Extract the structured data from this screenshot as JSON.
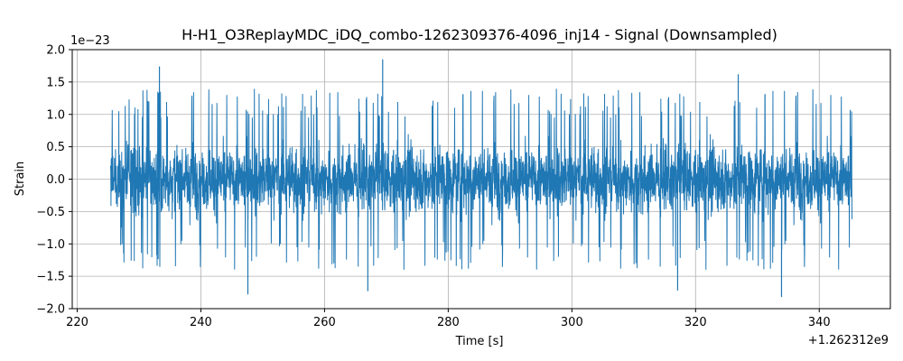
{
  "chart_data": {
    "type": "line",
    "title": "H-H1_O3ReplayMDC_iDQ_combo-1262309376-4096_inj14 - Signal (Downsampled)",
    "xlabel": "Time [s]",
    "ylabel": "Strain",
    "x_offset_label": "+1.262312e9",
    "y_scale_label": "1e−23",
    "x_range": [
      225.4,
      345.3
    ],
    "xlim": [
      219.2,
      351.5
    ],
    "ylim": [
      -2.0,
      2.0
    ],
    "x_ticks": [
      220,
      240,
      260,
      280,
      300,
      320,
      340
    ],
    "x_tick_labels": [
      "220",
      "240",
      "260",
      "280",
      "300",
      "320",
      "340"
    ],
    "y_ticks": [
      -2.0,
      -1.5,
      -1.0,
      -0.5,
      0.0,
      0.5,
      1.0,
      1.5,
      2.0
    ],
    "y_tick_labels": [
      "−2.0",
      "−1.5",
      "−1.0",
      "−0.5",
      "0.0",
      "0.5",
      "1.0",
      "1.5",
      "2.0"
    ],
    "grid": true,
    "series": [
      {
        "color": "#1f77b4",
        "envelope_typical": 0.95,
        "envelope_max": 1.75,
        "peaks": [
          {
            "x": 233.3,
            "y": 1.74
          },
          {
            "x": 269.4,
            "y": 1.85
          },
          {
            "x": 247.6,
            "y": -1.78
          },
          {
            "x": 267.0,
            "y": -1.73
          },
          {
            "x": 333.9,
            "y": -1.82
          },
          {
            "x": 326.9,
            "y": 1.62
          },
          {
            "x": 317.1,
            "y": -1.72
          }
        ]
      }
    ]
  }
}
